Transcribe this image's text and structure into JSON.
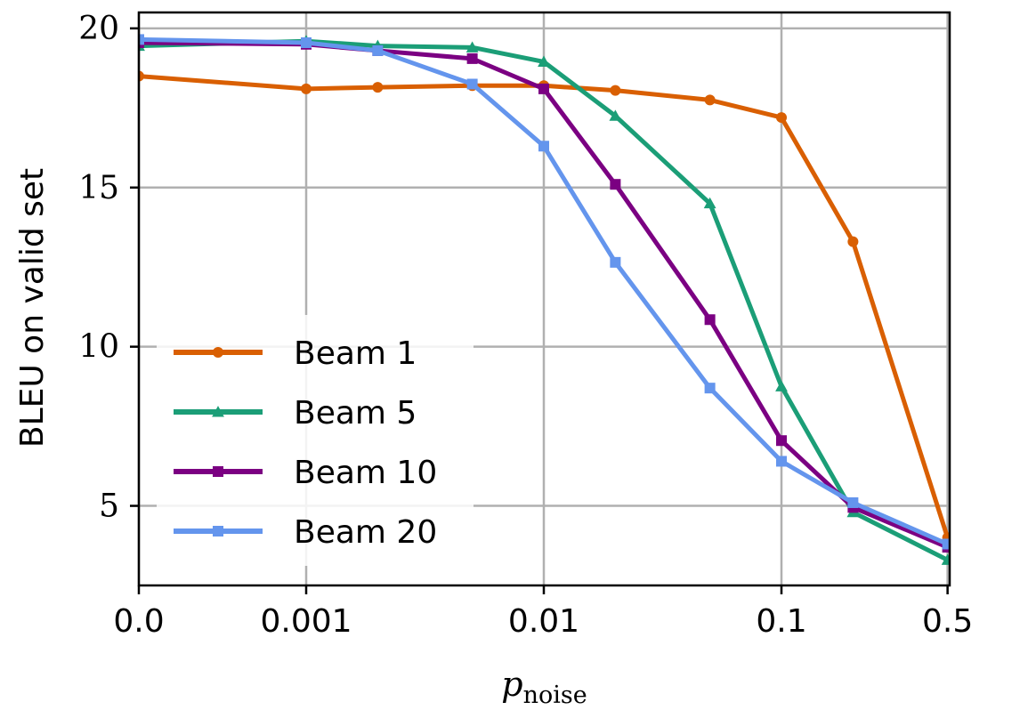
{
  "chart_data": {
    "type": "line",
    "title": "",
    "xlabel": "p",
    "xlabel_subscript": "noise",
    "ylabel": "BLEU on valid set",
    "x_scale": "categorical-log (evenly spaced by log10, 0.0 at left edge)",
    "x": [
      0.0,
      0.001,
      0.002,
      0.005,
      0.01,
      0.02,
      0.05,
      0.1,
      0.2,
      0.5
    ],
    "x_ticks": [
      "0.0",
      "0.001",
      "0.01",
      "0.1",
      "0.5"
    ],
    "x_tick_values": [
      0.0,
      0.001,
      0.01,
      0.1,
      0.5
    ],
    "ylim": [
      2.5,
      20.5
    ],
    "y_ticks": [
      "5",
      "10",
      "15",
      "20"
    ],
    "y_tick_values": [
      5,
      10,
      15,
      20
    ],
    "grid": true,
    "legend_position": "lower-left",
    "series": [
      {
        "name": "Beam 1",
        "color": "#d95f02",
        "marker": "circle",
        "values": [
          18.5,
          18.1,
          18.15,
          18.2,
          18.2,
          18.05,
          17.75,
          17.2,
          13.3,
          4.0
        ]
      },
      {
        "name": "Beam 5",
        "color": "#1b9e77",
        "marker": "triangle",
        "values": [
          19.45,
          19.6,
          19.45,
          19.4,
          18.95,
          17.25,
          14.5,
          8.75,
          4.8,
          3.3
        ]
      },
      {
        "name": "Beam 10",
        "color": "#7b0082",
        "marker": "square",
        "values": [
          19.55,
          19.5,
          19.3,
          19.05,
          18.1,
          15.1,
          10.85,
          7.05,
          4.95,
          3.7
        ]
      },
      {
        "name": "Beam 20",
        "color": "#6495ed",
        "marker": "square",
        "values": [
          19.65,
          19.55,
          19.3,
          18.25,
          16.3,
          12.65,
          8.7,
          6.4,
          5.1,
          3.8
        ]
      }
    ]
  }
}
